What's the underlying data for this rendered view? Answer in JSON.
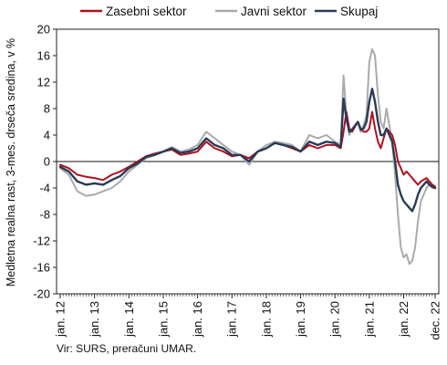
{
  "source_note": "Vir: SURS, preračuni UMAR.",
  "chart_data": {
    "type": "line",
    "title": "",
    "ylabel": "Medletna realna rast, 3-mes. drseča sredina, v %",
    "xlabel": "",
    "ylim": [
      -20,
      20
    ],
    "yticks": [
      -20,
      -16,
      -12,
      -8,
      -4,
      0,
      4,
      8,
      12,
      16,
      20
    ],
    "xticks": [
      "jan. 12",
      "jan. 13",
      "jan. 14",
      "jan. 15",
      "jan. 16",
      "jan. 17",
      "jan. 18",
      "jan. 19",
      "jan. 20",
      "jan. 21",
      "jan. 22",
      "dec. 22"
    ],
    "legend_position": "top",
    "grid": false,
    "x": [
      "jan. 12",
      "apr. 12",
      "jul. 12",
      "okt. 12",
      "jan. 13",
      "apr. 13",
      "jul. 13",
      "okt. 13",
      "jan. 14",
      "apr. 14",
      "jul. 14",
      "okt. 14",
      "jan. 15",
      "apr. 15",
      "jul. 15",
      "okt. 15",
      "jan. 16",
      "apr. 16",
      "jul. 16",
      "okt. 16",
      "jan. 17",
      "apr. 17",
      "jul. 17",
      "okt. 17",
      "jan. 18",
      "apr. 18",
      "jul. 18",
      "okt. 18",
      "jan. 19",
      "apr. 19",
      "jul. 19",
      "okt. 19",
      "jan. 20",
      "mar. 20",
      "apr. 20",
      "maj. 20",
      "jun. 20",
      "jul. 20",
      "sep. 20",
      "okt. 20",
      "nov. 20",
      "dec. 20",
      "jan. 21",
      "feb. 21",
      "mar. 21",
      "apr. 21",
      "maj. 21",
      "jun. 21",
      "jul. 21",
      "sep. 21",
      "okt. 21",
      "nov. 21",
      "dec. 21",
      "jan. 22",
      "feb. 22",
      "mar. 22",
      "apr. 22",
      "maj. 22",
      "jun. 22",
      "jul. 22",
      "sep. 22",
      "okt. 22",
      "nov. 22",
      "dec. 22"
    ],
    "series": [
      {
        "name": "Zasebni sektor",
        "color": "#b0101e",
        "width": 2.0,
        "values": [
          -0.5,
          -1.0,
          -2.0,
          -2.3,
          -2.5,
          -2.8,
          -2.0,
          -1.5,
          -0.8,
          0.0,
          0.8,
          1.2,
          1.5,
          1.8,
          1.0,
          1.2,
          1.5,
          3.0,
          2.0,
          1.5,
          0.8,
          1.0,
          0.5,
          1.5,
          2.0,
          2.8,
          2.5,
          2.0,
          1.5,
          2.5,
          2.0,
          2.5,
          2.5,
          2.0,
          4.5,
          7.5,
          5.0,
          4.5,
          6.0,
          5.0,
          4.5,
          4.5,
          5.0,
          7.5,
          5.0,
          3.0,
          2.0,
          3.5,
          5.0,
          4.0,
          2.5,
          0.0,
          -1.0,
          -2.0,
          -1.5,
          -2.0,
          -2.5,
          -3.0,
          -3.5,
          -3.0,
          -2.5,
          -3.0,
          -3.5,
          -3.8
        ]
      },
      {
        "name": "Javni sektor",
        "color": "#a8abae",
        "width": 2.0,
        "values": [
          -1.0,
          -2.0,
          -4.5,
          -5.2,
          -5.0,
          -4.5,
          -4.0,
          -3.0,
          -1.5,
          -0.5,
          0.5,
          1.0,
          1.5,
          2.2,
          1.5,
          1.8,
          2.5,
          4.5,
          3.5,
          2.5,
          1.5,
          1.0,
          -0.5,
          1.5,
          2.5,
          3.0,
          2.8,
          2.5,
          1.5,
          4.0,
          3.5,
          4.0,
          3.0,
          2.5,
          13.0,
          7.0,
          4.0,
          5.0,
          6.0,
          4.5,
          5.5,
          7.0,
          15.0,
          17.0,
          16.0,
          10.0,
          6.0,
          5.0,
          8.0,
          3.0,
          -2.0,
          -8.0,
          -13.0,
          -14.5,
          -14.0,
          -15.5,
          -15.0,
          -13.0,
          -9.0,
          -6.0,
          -4.0,
          -3.5,
          -4.0,
          -4.0
        ]
      },
      {
        "name": "Skupaj",
        "color": "#2b3a55",
        "width": 2.4,
        "values": [
          -0.8,
          -1.5,
          -3.0,
          -3.5,
          -3.3,
          -3.5,
          -2.8,
          -2.2,
          -1.0,
          -0.3,
          0.7,
          1.0,
          1.5,
          2.0,
          1.3,
          1.5,
          2.0,
          3.5,
          2.5,
          2.0,
          1.0,
          1.0,
          0.0,
          1.5,
          2.0,
          2.8,
          2.5,
          2.2,
          1.5,
          3.0,
          2.5,
          3.0,
          2.8,
          2.2,
          9.5,
          6.5,
          4.5,
          4.8,
          6.0,
          4.8,
          5.0,
          6.0,
          9.0,
          11.0,
          9.0,
          6.0,
          4.0,
          4.0,
          5.0,
          3.0,
          0.0,
          -3.5,
          -5.0,
          -6.0,
          -6.5,
          -7.0,
          -7.5,
          -6.5,
          -5.0,
          -4.0,
          -3.0,
          -3.5,
          -3.8,
          -4.0
        ]
      }
    ]
  }
}
